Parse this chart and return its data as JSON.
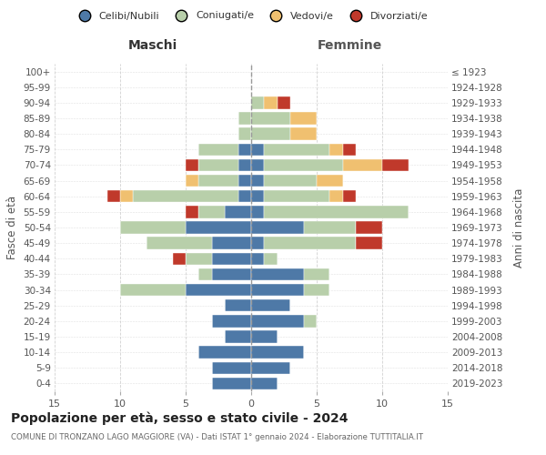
{
  "age_groups": [
    "0-4",
    "5-9",
    "10-14",
    "15-19",
    "20-24",
    "25-29",
    "30-34",
    "35-39",
    "40-44",
    "45-49",
    "50-54",
    "55-59",
    "60-64",
    "65-69",
    "70-74",
    "75-79",
    "80-84",
    "85-89",
    "90-94",
    "95-99",
    "100+"
  ],
  "birth_years": [
    "2019-2023",
    "2014-2018",
    "2009-2013",
    "2004-2008",
    "1999-2003",
    "1994-1998",
    "1989-1993",
    "1984-1988",
    "1979-1983",
    "1974-1978",
    "1969-1973",
    "1964-1968",
    "1959-1963",
    "1954-1958",
    "1949-1953",
    "1944-1948",
    "1939-1943",
    "1934-1938",
    "1929-1933",
    "1924-1928",
    "≤ 1923"
  ],
  "colors": {
    "celibi": "#4e79a7",
    "coniugati": "#b8cfaa",
    "vedovi": "#f0c070",
    "divorziati": "#c0392b"
  },
  "male": {
    "celibi": [
      3,
      3,
      4,
      2,
      3,
      2,
      5,
      3,
      3,
      3,
      5,
      2,
      1,
      1,
      1,
      1,
      0,
      0,
      0,
      0,
      0
    ],
    "coniugati": [
      0,
      0,
      0,
      0,
      0,
      0,
      5,
      1,
      2,
      5,
      5,
      2,
      8,
      3,
      3,
      3,
      1,
      1,
      0,
      0,
      0
    ],
    "vedovi": [
      0,
      0,
      0,
      0,
      0,
      0,
      0,
      0,
      0,
      0,
      0,
      0,
      1,
      1,
      0,
      0,
      0,
      0,
      0,
      0,
      0
    ],
    "divorziati": [
      0,
      0,
      0,
      0,
      0,
      0,
      0,
      0,
      1,
      0,
      0,
      1,
      1,
      0,
      1,
      0,
      0,
      0,
      0,
      0,
      0
    ]
  },
  "female": {
    "celibi": [
      2,
      3,
      4,
      2,
      4,
      3,
      4,
      4,
      1,
      1,
      4,
      1,
      1,
      1,
      1,
      1,
      0,
      0,
      0,
      0,
      0
    ],
    "coniugati": [
      0,
      0,
      0,
      0,
      1,
      0,
      2,
      2,
      1,
      7,
      4,
      11,
      5,
      4,
      6,
      5,
      3,
      3,
      1,
      0,
      0
    ],
    "vedovi": [
      0,
      0,
      0,
      0,
      0,
      0,
      0,
      0,
      0,
      0,
      0,
      0,
      1,
      2,
      3,
      1,
      2,
      2,
      1,
      0,
      0
    ],
    "divorziati": [
      0,
      0,
      0,
      0,
      0,
      0,
      0,
      0,
      0,
      2,
      2,
      0,
      1,
      0,
      2,
      1,
      0,
      0,
      1,
      0,
      0
    ]
  },
  "title": "Popolazione per età, sesso e stato civile - 2024",
  "subtitle": "COMUNE DI TRONZANO LAGO MAGGIORE (VA) - Dati ISTAT 1° gennaio 2024 - Elaborazione TUTTITALIA.IT",
  "xlabel_left": "Maschi",
  "xlabel_right": "Femmine",
  "ylabel_left": "Fasce di età",
  "ylabel_right": "Anni di nascita",
  "xlim": 15,
  "legend_labels": [
    "Celibi/Nubili",
    "Coniugati/e",
    "Vedovi/e",
    "Divorziati/e"
  ],
  "background_color": "#ffffff",
  "grid_color": "#cccccc"
}
